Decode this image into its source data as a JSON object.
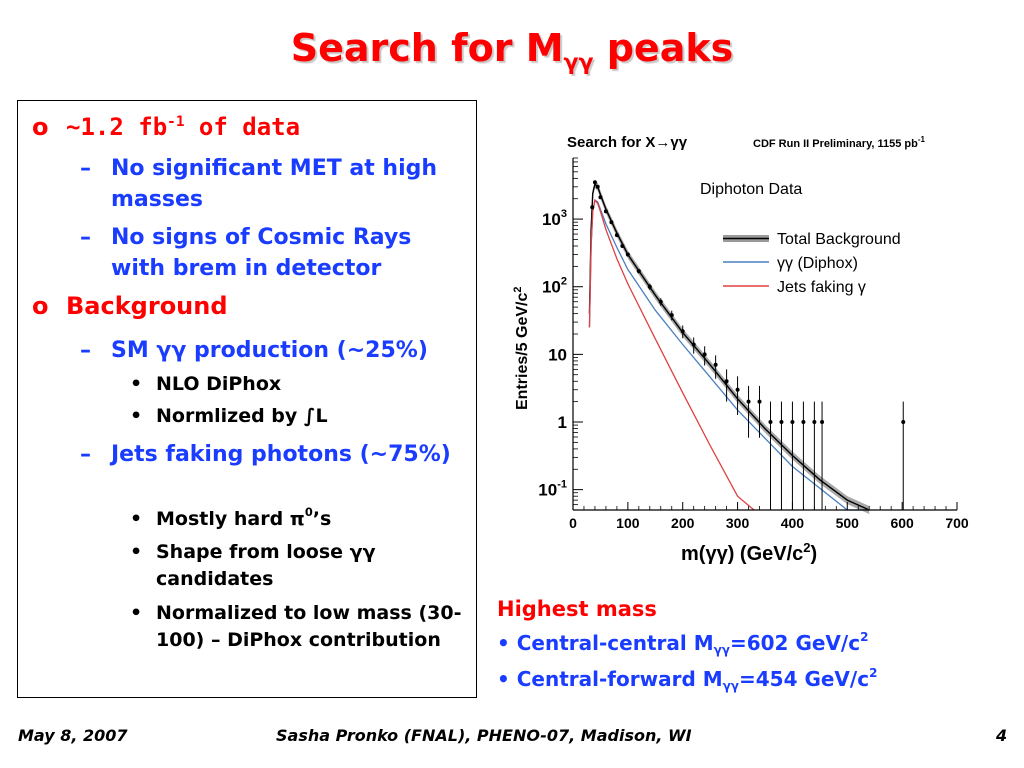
{
  "slide": {
    "title_prefix": "Search for M",
    "title_sub": "γγ",
    "title_suffix": " peaks"
  },
  "bullets": {
    "data_prefix": "~1.2 fb",
    "data_sup": "-1",
    "data_suffix": " of data",
    "sub1": "No significant MET at high masses",
    "sub2": "No signs of Cosmic Rays with brem in detector",
    "background": "Background",
    "sm_line": "SM γγ production (~25%)",
    "nlo": "NLO DiPhox",
    "normlized": "Normlized by ∫L",
    "jets": "Jets faking photons (~75%)",
    "mostly_prefix": "Mostly hard π",
    "mostly_sup": "0",
    "mostly_suffix": "’s",
    "shape": "Shape from loose γγ candidates",
    "normalized": "Normalized to low mass (30-100) – DiPhox contribution",
    "bullet_o": "o",
    "dash": "–",
    "dot": "•"
  },
  "highest_mass": {
    "title": "Highest mass",
    "item1_prefix": "• Central-central M",
    "item1_sub": "γγ",
    "item1_suffix": "=602 GeV/c",
    "item1_sup": "2",
    "item2_prefix": "• Central-forward M",
    "item2_sub": "γγ",
    "item2_suffix": "=454 GeV/c",
    "item2_sup": "2"
  },
  "footer": {
    "date": "May 8, 2007",
    "author": "Sasha Pronko (FNAL), PHENO-07, Madison, WI",
    "page": "4"
  },
  "colors": {
    "title": "#ff0000",
    "level1": "#ff0000",
    "level2": "#1a3cff",
    "diphox": "#4a7fc0",
    "jets": "#e04040",
    "band": "#9a9a9a"
  },
  "chart_data": {
    "type": "scatter",
    "title": "Search for X→γγ",
    "subtitle_prefix": "CDF Run II Preliminary, 1155 pb",
    "subtitle_sup": "-1",
    "annotation": "Diphoton Data",
    "xlabel_prefix": "m(γγ) (GeV/c",
    "xlabel_sup": "2",
    "xlabel_suffix": ")",
    "ylabel_prefix": "Entries/5 GeV/c",
    "ylabel_sup": "2",
    "log_y": true,
    "xlim": [
      0,
      700
    ],
    "ylim": [
      0.05,
      8000
    ],
    "x_ticks": [
      "0",
      "100",
      "200",
      "300",
      "400",
      "500",
      "600",
      "700"
    ],
    "y_ticks": [
      {
        "base": "10",
        "sup": "3"
      },
      {
        "base": "10",
        "sup": "2"
      },
      {
        "base": "10",
        "sup": ""
      },
      {
        "base": "1",
        "sup": ""
      },
      {
        "base": "10",
        "sup": "-1"
      }
    ],
    "legend_position": "right",
    "series": [
      {
        "name": "Total Background",
        "x": [
          30,
          33,
          36,
          40,
          45,
          50,
          60,
          80,
          100,
          150,
          200,
          250,
          300,
          350,
          400,
          450,
          500,
          540
        ],
        "values": [
          40,
          700,
          2400,
          3300,
          3000,
          2300,
          1400,
          620,
          300,
          75,
          21,
          7,
          2.2,
          0.8,
          0.32,
          0.14,
          0.07,
          0.05
        ]
      },
      {
        "name": "γγ (Diphox)",
        "x": [
          30,
          33,
          36,
          40,
          45,
          50,
          60,
          80,
          100,
          150,
          200,
          250,
          300,
          400,
          500,
          540
        ],
        "values": [
          25,
          400,
          1300,
          1900,
          1800,
          1400,
          850,
          380,
          180,
          45,
          14,
          4.6,
          1.5,
          0.22,
          0.05,
          0.04
        ]
      },
      {
        "name": "Jets faking γ",
        "x": [
          30,
          33,
          36,
          40,
          45,
          50,
          60,
          80,
          100,
          150,
          200,
          250,
          300,
          330
        ],
        "values": [
          25,
          400,
          1300,
          1900,
          1700,
          1300,
          700,
          260,
          110,
          17,
          2.7,
          0.45,
          0.08,
          0.05
        ]
      },
      {
        "name": "Diphoton Data",
        "x": [
          35,
          40,
          45,
          50,
          60,
          70,
          80,
          90,
          100,
          120,
          140,
          160,
          180,
          200,
          220,
          240,
          260,
          280,
          300,
          320,
          340,
          360,
          380,
          400,
          420,
          440,
          454,
          602
        ],
        "values": [
          1500,
          3500,
          3000,
          2100,
          1300,
          900,
          580,
          400,
          300,
          170,
          100,
          60,
          38,
          22,
          14,
          10,
          7,
          4,
          3,
          2,
          2,
          1,
          1,
          1,
          1,
          1,
          1,
          1
        ]
      }
    ]
  }
}
